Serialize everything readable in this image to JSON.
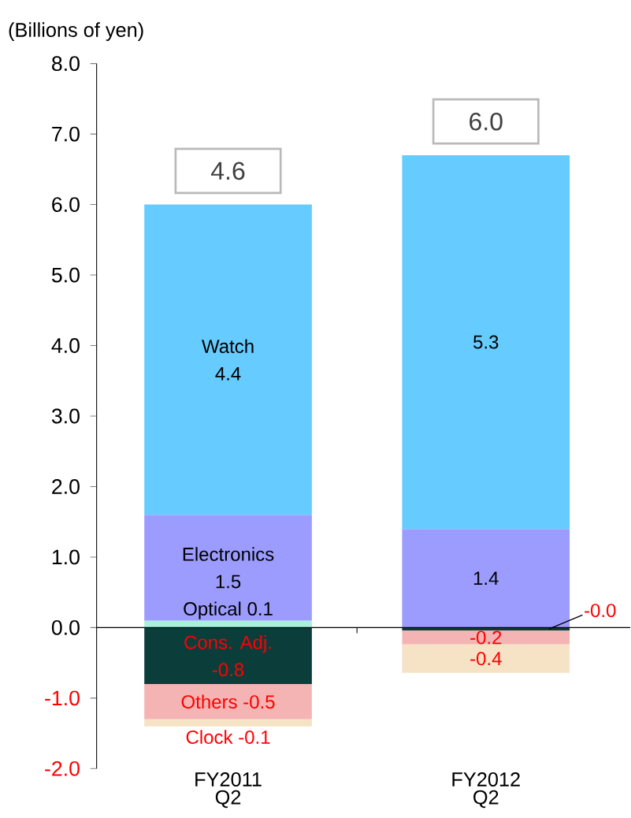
{
  "chart_data": {
    "type": "bar",
    "stacked": true,
    "ylabel": "(Billions of yen)",
    "categories": [
      "FY2011 Q2",
      "FY2012 Q2"
    ],
    "ylim": [
      -2,
      8
    ],
    "yticks": [
      {
        "value": -2,
        "label": "-2.0"
      },
      {
        "value": -1,
        "label": "-1.0"
      },
      {
        "value": 0,
        "label": "0.0"
      },
      {
        "value": 1,
        "label": "1.0"
      },
      {
        "value": 2,
        "label": "2.0"
      },
      {
        "value": 3,
        "label": "3.0"
      },
      {
        "value": 4,
        "label": "4.0"
      },
      {
        "value": 5,
        "label": "5.0"
      },
      {
        "value": 6,
        "label": "6.0"
      },
      {
        "value": 7,
        "label": "7.0"
      },
      {
        "value": 8,
        "label": "8.0"
      }
    ],
    "totals": [
      "4.6",
      "6.0"
    ],
    "series": [
      {
        "name": "Optical",
        "color": "#a8f0dc",
        "values": [
          0.1,
          null
        ],
        "value_labels": [
          "0.1",
          null
        ]
      },
      {
        "name": "Electronics",
        "color": "#9c9cff",
        "values": [
          1.5,
          1.4
        ],
        "value_labels": [
          "1.5",
          "1.4"
        ]
      },
      {
        "name": "Watch",
        "color": "#66ccff",
        "values": [
          4.4,
          5.3
        ],
        "value_labels": [
          "4.4",
          "5.3"
        ]
      },
      {
        "name": "Cons. Adj.",
        "color": "#0b3d3a",
        "values": [
          -0.8,
          -0.04
        ],
        "value_labels": [
          "-0.8",
          "-0.0"
        ]
      },
      {
        "name": "Others",
        "color": "#f4b4b4",
        "values": [
          -0.5,
          -0.2
        ],
        "value_labels": [
          "-0.5",
          "-0.2"
        ]
      },
      {
        "name": "Clock",
        "color": "#f6e2c4",
        "values": [
          -0.1,
          -0.4
        ],
        "value_labels": [
          "-0.1",
          "-0.4"
        ]
      }
    ]
  }
}
